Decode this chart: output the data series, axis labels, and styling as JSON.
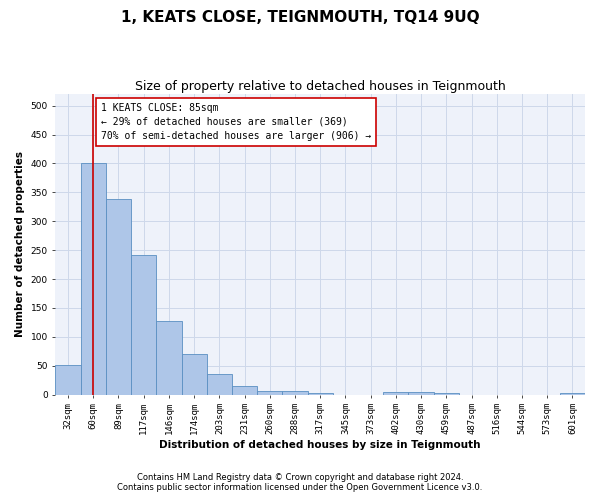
{
  "title": "1, KEATS CLOSE, TEIGNMOUTH, TQ14 9UQ",
  "subtitle": "Size of property relative to detached houses in Teignmouth",
  "xlabel": "Distribution of detached houses by size in Teignmouth",
  "ylabel": "Number of detached properties",
  "footer_line1": "Contains HM Land Registry data © Crown copyright and database right 2024.",
  "footer_line2": "Contains public sector information licensed under the Open Government Licence v3.0.",
  "bar_labels": [
    "32sqm",
    "60sqm",
    "89sqm",
    "117sqm",
    "146sqm",
    "174sqm",
    "203sqm",
    "231sqm",
    "260sqm",
    "288sqm",
    "317sqm",
    "345sqm",
    "373sqm",
    "402sqm",
    "430sqm",
    "459sqm",
    "487sqm",
    "516sqm",
    "544sqm",
    "573sqm",
    "601sqm"
  ],
  "bar_values": [
    52,
    400,
    338,
    241,
    128,
    70,
    35,
    15,
    7,
    7,
    2,
    0,
    0,
    5,
    5,
    2,
    0,
    0,
    0,
    0,
    3
  ],
  "bar_color": "#aec6e8",
  "bar_edgecolor": "#5a8fc2",
  "ylim": [
    0,
    520
  ],
  "yticks": [
    0,
    50,
    100,
    150,
    200,
    250,
    300,
    350,
    400,
    450,
    500
  ],
  "annotation_title": "1 KEATS CLOSE: 85sqm",
  "annotation_line1": "← 29% of detached houses are smaller (369)",
  "annotation_line2": "70% of semi-detached houses are larger (906) →",
  "vline_color": "#cc0000",
  "annotation_box_edgecolor": "#cc0000",
  "grid_color": "#cdd8ea",
  "bg_color": "#eef2fa",
  "title_fontsize": 11,
  "subtitle_fontsize": 9,
  "axis_label_fontsize": 7.5,
  "tick_fontsize": 6.5,
  "annotation_fontsize": 7,
  "footer_fontsize": 6
}
